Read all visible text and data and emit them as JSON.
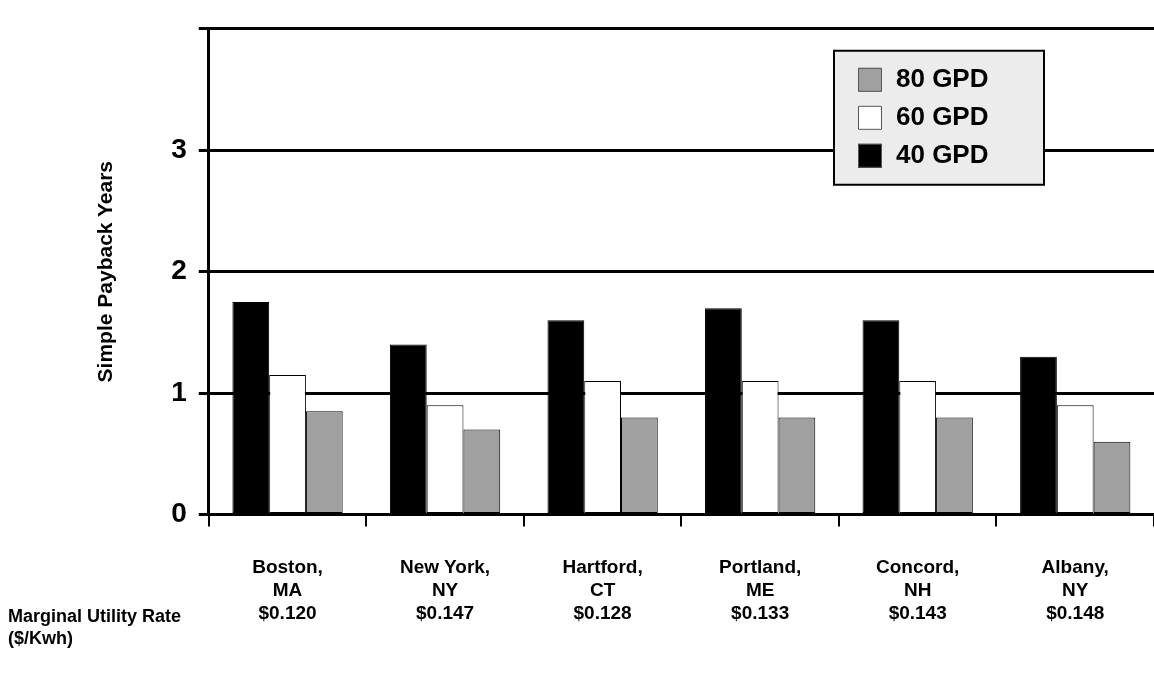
{
  "chart_data": {
    "type": "bar",
    "ylabel": "Simple Payback Years",
    "categories": [
      "Boston,\nMA\n$0.120",
      "New York,\nNY\n$0.147",
      "Hartford,\nCT\n$0.128",
      "Portland,\nME\n$0.133",
      "Concord,\nNH\n$0.143",
      "Albany,\nNY\n$0.148"
    ],
    "series": [
      {
        "name": "40 GPD",
        "color": "#000000",
        "values": [
          1.75,
          1.4,
          1.6,
          1.7,
          1.6,
          1.3
        ]
      },
      {
        "name": "60 GPD",
        "color": "#ffffff",
        "values": [
          1.15,
          0.9,
          1.1,
          1.1,
          1.1,
          0.9
        ]
      },
      {
        "name": "80 GPD",
        "color": "#a0a0a0",
        "values": [
          0.85,
          0.7,
          0.8,
          0.8,
          0.8,
          0.6
        ]
      }
    ],
    "ylim": [
      0,
      4
    ],
    "yticks": [
      0,
      1,
      2,
      3,
      {
        "value": 4,
        "label": null
      }
    ],
    "grid": "y",
    "legend": "top right",
    "annotations": [
      "Marginal Utility Rate\n($/Kwh)"
    ]
  }
}
